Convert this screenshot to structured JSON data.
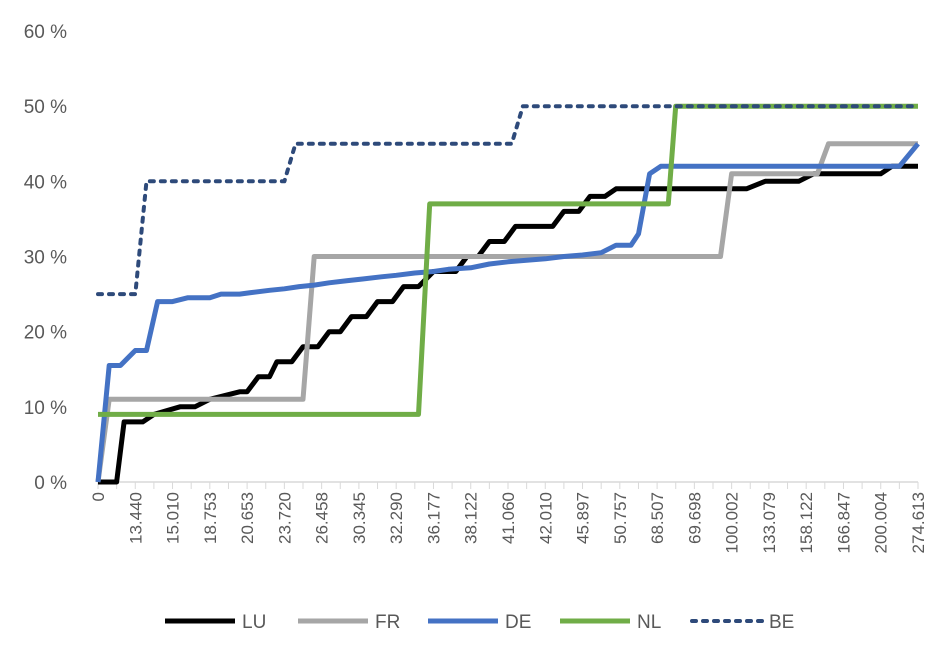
{
  "chart_data": {
    "type": "line",
    "title": "",
    "xlabel": "",
    "ylabel": "",
    "ylim": [
      0,
      60
    ],
    "y_ticks": [
      "0 %",
      "10 %",
      "20 %",
      "30 %",
      "40 %",
      "50 %",
      "60 %"
    ],
    "x_tick_labels": [
      "0",
      "13.440",
      "15.010",
      "18.753",
      "20.653",
      "23.720",
      "26.458",
      "30.345",
      "32.290",
      "36.177",
      "38.122",
      "41.060",
      "42.010",
      "45.897",
      "50.757",
      "68.507",
      "69.698",
      "100.002",
      "133.079",
      "158.122",
      "166.847",
      "200.004",
      "274.613"
    ],
    "grid": false,
    "legend_position": "bottom",
    "series": [
      {
        "name": "LU",
        "color": "#000000",
        "style": "solid",
        "points": [
          [
            0,
            0
          ],
          [
            0.5,
            0
          ],
          [
            0.7,
            8
          ],
          [
            1.2,
            8
          ],
          [
            1.5,
            9
          ],
          [
            2.2,
            10
          ],
          [
            2.6,
            10
          ],
          [
            3.0,
            11
          ],
          [
            3.8,
            12
          ],
          [
            4.0,
            12
          ],
          [
            4.3,
            14
          ],
          [
            4.6,
            14
          ],
          [
            4.8,
            16
          ],
          [
            5.2,
            16
          ],
          [
            5.5,
            18
          ],
          [
            5.9,
            18
          ],
          [
            6.2,
            20
          ],
          [
            6.5,
            20
          ],
          [
            6.8,
            22
          ],
          [
            7.2,
            22
          ],
          [
            7.5,
            24
          ],
          [
            7.9,
            24
          ],
          [
            8.2,
            26
          ],
          [
            8.6,
            26
          ],
          [
            9.0,
            28
          ],
          [
            9.6,
            28
          ],
          [
            9.9,
            30
          ],
          [
            10.2,
            30
          ],
          [
            10.5,
            32
          ],
          [
            10.9,
            32
          ],
          [
            11.2,
            34
          ],
          [
            12.2,
            34
          ],
          [
            12.5,
            36
          ],
          [
            12.9,
            36
          ],
          [
            13.2,
            38
          ],
          [
            13.6,
            38
          ],
          [
            13.9,
            39
          ],
          [
            17.0,
            39
          ],
          [
            17.4,
            39
          ],
          [
            17.9,
            40
          ],
          [
            18.8,
            40
          ],
          [
            19.2,
            41
          ],
          [
            20.7,
            41
          ],
          [
            21.0,
            41
          ],
          [
            21.3,
            42
          ],
          [
            22.0,
            42
          ]
        ]
      },
      {
        "name": "FR",
        "color": "#a6a6a6",
        "style": "solid",
        "points": [
          [
            0,
            0
          ],
          [
            0.3,
            11
          ],
          [
            5.5,
            11
          ],
          [
            5.8,
            30
          ],
          [
            16.7,
            30
          ],
          [
            17.0,
            41
          ],
          [
            19.3,
            41
          ],
          [
            19.6,
            45
          ],
          [
            22.0,
            45
          ]
        ]
      },
      {
        "name": "DE",
        "color": "#4472c4",
        "style": "solid",
        "points": [
          [
            0,
            0
          ],
          [
            0.3,
            15.5
          ],
          [
            0.6,
            15.5
          ],
          [
            1.0,
            17.5
          ],
          [
            1.3,
            17.5
          ],
          [
            1.6,
            24
          ],
          [
            2.0,
            24
          ],
          [
            2.4,
            24.5
          ],
          [
            3.0,
            24.5
          ],
          [
            3.3,
            25
          ],
          [
            3.8,
            25
          ],
          [
            4.1,
            25.2
          ],
          [
            4.6,
            25.5
          ],
          [
            5.0,
            25.7
          ],
          [
            5.4,
            26
          ],
          [
            5.8,
            26.2
          ],
          [
            6.2,
            26.5
          ],
          [
            6.7,
            26.8
          ],
          [
            7.1,
            27
          ],
          [
            7.6,
            27.3
          ],
          [
            8.0,
            27.5
          ],
          [
            8.5,
            27.8
          ],
          [
            9.0,
            28
          ],
          [
            9.4,
            28.3
          ],
          [
            10.0,
            28.5
          ],
          [
            10.5,
            29
          ],
          [
            11.0,
            29.3
          ],
          [
            11.5,
            29.5
          ],
          [
            12.0,
            29.7
          ],
          [
            12.5,
            30
          ],
          [
            13.0,
            30.2
          ],
          [
            13.5,
            30.5
          ],
          [
            13.9,
            31.5
          ],
          [
            14.3,
            31.5
          ],
          [
            14.5,
            33
          ],
          [
            14.8,
            41
          ],
          [
            15.1,
            42
          ],
          [
            21.5,
            42
          ],
          [
            22.0,
            45
          ]
        ]
      },
      {
        "name": "NL",
        "color": "#70ad47",
        "style": "solid",
        "points": [
          [
            0,
            9
          ],
          [
            8.6,
            9
          ],
          [
            8.9,
            37
          ],
          [
            15.3,
            37
          ],
          [
            15.5,
            50
          ],
          [
            22.0,
            50
          ]
        ]
      },
      {
        "name": "BE",
        "color": "#2e4a7a",
        "style": "dotted",
        "points": [
          [
            0,
            25
          ],
          [
            1.0,
            25
          ],
          [
            1.3,
            40
          ],
          [
            5.0,
            40
          ],
          [
            5.3,
            45
          ],
          [
            11.1,
            45
          ],
          [
            11.4,
            50
          ],
          [
            22.0,
            50
          ]
        ]
      }
    ]
  }
}
